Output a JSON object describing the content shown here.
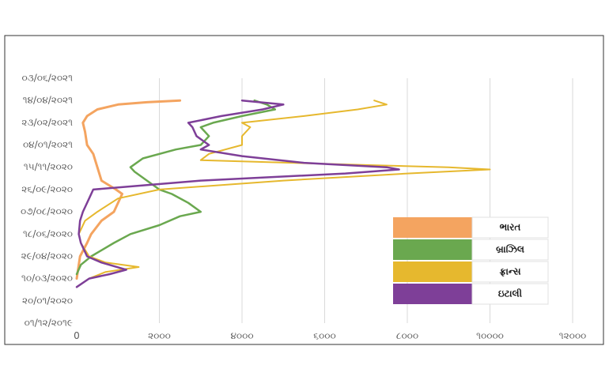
{
  "chart_data": {
    "type": "line",
    "orientation": "horizontal-time",
    "title": "",
    "xlabel": "",
    "ylabel": "",
    "xlim": [
      0,
      12000
    ],
    "x_ticks": [
      0,
      2000,
      4000,
      6000,
      8000,
      10000,
      12000
    ],
    "x_tick_labels": [
      "0",
      "૨૦૦૦",
      "૪૦૦૦",
      "૬૦૦૦",
      "૮૦૦૦",
      "૧૦૦૦૦",
      "૧૨૦૦૦"
    ],
    "y_range": [
      "2019-12-01",
      "2021-06-03"
    ],
    "y_ticks": [
      "2019-12-01",
      "2020-01-20",
      "2020-03-10",
      "2020-04-29",
      "2020-06-18",
      "2020-08-07",
      "2020-09-26",
      "2020-11-15",
      "2021-01-04",
      "2021-02-23",
      "2021-04-14",
      "2021-06-03"
    ],
    "y_tick_labels": [
      "૦૧/૧૨/૨૦૧૯",
      "૨૦/૦૧/૨૦૨૦",
      "૧૦/૦૩/૨૦૨૦",
      "૨૯/૦૪/૨૦૨૦",
      "૧૮/૦૬/૨૦૨૦",
      "૦૭/૦૮/૨૦૨૦",
      "૨૬/૦૯/૨૦૨૦",
      "૧૫/૧૧/૨૦૨૦",
      "૦૪/૦૧/૨૦૨૧",
      "૨૩/૦૨/૨૦૨૧",
      "૧૪/૦૪/૨૦૨૧",
      "૦૩/૦૬/૨૦૨૧"
    ],
    "grid": "vertical-lines",
    "legend_position": "right",
    "series": [
      {
        "name": "ભારત",
        "color": "#f4a460",
        "points": [
          [
            "2020-03-10",
            0
          ],
          [
            "2020-04-29",
            80
          ],
          [
            "2020-05-29",
            250
          ],
          [
            "2020-06-18",
            350
          ],
          [
            "2020-07-18",
            600
          ],
          [
            "2020-08-07",
            900
          ],
          [
            "2020-09-16",
            1100
          ],
          [
            "2020-09-26",
            950
          ],
          [
            "2020-10-16",
            600
          ],
          [
            "2020-11-15",
            500
          ],
          [
            "2020-12-15",
            400
          ],
          [
            "2021-01-04",
            250
          ],
          [
            "2021-02-03",
            200
          ],
          [
            "2021-02-23",
            150
          ],
          [
            "2021-03-10",
            250
          ],
          [
            "2021-03-25",
            500
          ],
          [
            "2021-04-05",
            1000
          ],
          [
            "2021-04-10",
            1700
          ],
          [
            "2021-04-14",
            2500
          ]
        ]
      },
      {
        "name": "બ્રાઝિલ",
        "color": "#6aa84f",
        "points": [
          [
            "2020-03-20",
            0
          ],
          [
            "2020-04-10",
            100
          ],
          [
            "2020-04-29",
            350
          ],
          [
            "2020-05-29",
            900
          ],
          [
            "2020-06-18",
            1300
          ],
          [
            "2020-07-08",
            2000
          ],
          [
            "2020-07-28",
            2500
          ],
          [
            "2020-08-07",
            3000
          ],
          [
            "2020-08-27",
            2700
          ],
          [
            "2020-09-16",
            2300
          ],
          [
            "2020-09-26",
            2000
          ],
          [
            "2020-10-16",
            1700
          ],
          [
            "2020-11-05",
            1400
          ],
          [
            "2020-11-15",
            1300
          ],
          [
            "2020-12-05",
            1600
          ],
          [
            "2020-12-25",
            2400
          ],
          [
            "2021-01-04",
            3000
          ],
          [
            "2021-01-24",
            3200
          ],
          [
            "2021-02-13",
            3000
          ],
          [
            "2021-02-23",
            3300
          ],
          [
            "2021-03-10",
            4000
          ],
          [
            "2021-03-25",
            4800
          ],
          [
            "2021-04-05",
            4600
          ],
          [
            "2021-04-14",
            4300
          ]
        ]
      },
      {
        "name": "ફ્રાન્સ",
        "color": "#e6b82e",
        "points": [
          [
            "2020-02-20",
            0
          ],
          [
            "2020-03-10",
            300
          ],
          [
            "2020-03-25",
            700
          ],
          [
            "2020-04-05",
            1500
          ],
          [
            "2020-04-15",
            700
          ],
          [
            "2020-04-29",
            300
          ],
          [
            "2020-05-29",
            100
          ],
          [
            "2020-06-18",
            50
          ],
          [
            "2020-07-18",
            200
          ],
          [
            "2020-08-07",
            500
          ],
          [
            "2020-09-06",
            1000
          ],
          [
            "2020-09-26",
            2000
          ],
          [
            "2020-10-16",
            5000
          ],
          [
            "2020-11-01",
            8000
          ],
          [
            "2020-11-10",
            10000
          ],
          [
            "2020-11-15",
            9000
          ],
          [
            "2020-11-20",
            7000
          ],
          [
            "2020-12-01",
            3000
          ],
          [
            "2020-12-15",
            3200
          ],
          [
            "2021-01-04",
            4000
          ],
          [
            "2021-01-24",
            4000
          ],
          [
            "2021-02-13",
            4200
          ],
          [
            "2021-02-23",
            4000
          ],
          [
            "2021-03-10",
            5500
          ],
          [
            "2021-03-25",
            6800
          ],
          [
            "2021-04-05",
            7500
          ],
          [
            "2021-04-14",
            7200
          ]
        ]
      },
      {
        "name": "ઇટાલી",
        "color": "#7e3f98",
        "points": [
          [
            "2020-02-20",
            0
          ],
          [
            "2020-03-10",
            300
          ],
          [
            "2020-03-20",
            800
          ],
          [
            "2020-03-30",
            1200
          ],
          [
            "2020-04-15",
            600
          ],
          [
            "2020-04-29",
            250
          ],
          [
            "2020-05-29",
            100
          ],
          [
            "2020-06-18",
            50
          ],
          [
            "2020-07-18",
            80
          ],
          [
            "2020-08-07",
            150
          ],
          [
            "2020-09-06",
            300
          ],
          [
            "2020-09-26",
            400
          ],
          [
            "2020-10-16",
            3000
          ],
          [
            "2020-11-01",
            6500
          ],
          [
            "2020-11-10",
            7800
          ],
          [
            "2020-11-15",
            7500
          ],
          [
            "2020-11-25",
            5500
          ],
          [
            "2020-12-10",
            4000
          ],
          [
            "2020-12-25",
            3000
          ],
          [
            "2021-01-04",
            3200
          ],
          [
            "2021-01-24",
            2900
          ],
          [
            "2021-02-13",
            2800
          ],
          [
            "2021-02-23",
            2700
          ],
          [
            "2021-03-10",
            3500
          ],
          [
            "2021-03-25",
            4500
          ],
          [
            "2021-04-05",
            5000
          ],
          [
            "2021-04-14",
            4000
          ]
        ]
      }
    ]
  }
}
